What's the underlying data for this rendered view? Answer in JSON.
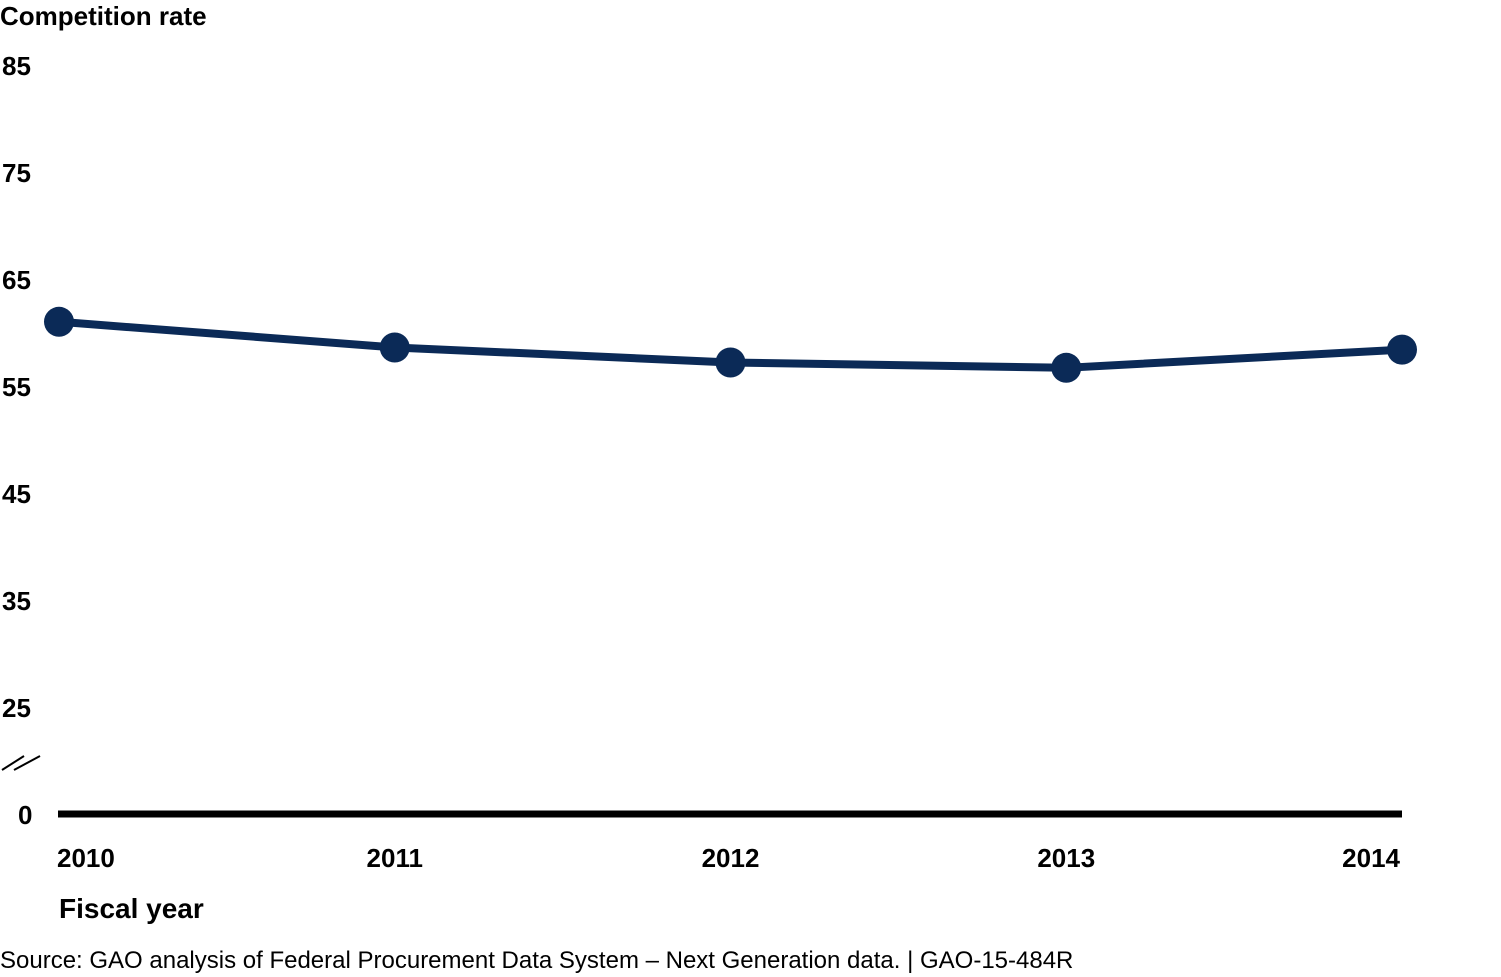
{
  "chart_data": {
    "type": "line",
    "ylabel": "Competition rate",
    "xlabel": "Fiscal year",
    "x": [
      "2010",
      "2011",
      "2012",
      "2013",
      "2014"
    ],
    "series": [
      {
        "values": [
          61.0,
          58.6,
          57.2,
          56.7,
          58.4
        ]
      }
    ],
    "yticks": [
      "0",
      "25",
      "35",
      "45",
      "55",
      "65",
      "75",
      "85"
    ],
    "ylim": [
      0,
      85
    ],
    "axis_break": true,
    "grid": false,
    "line_color": "#0b2a57",
    "axis_color": "#000000"
  },
  "footer": {
    "source": "Source: GAO analysis of Federal Procurement Data System – Next Generation data.  |  GAO-15-484R"
  }
}
